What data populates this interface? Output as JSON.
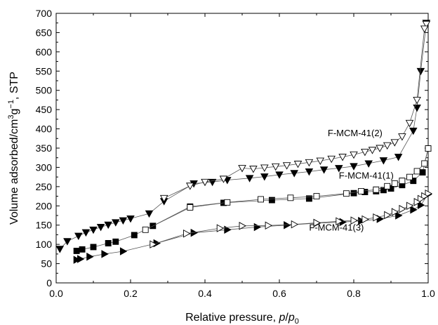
{
  "chart_data": {
    "type": "scatter",
    "title": "",
    "xlabel": "Relative pressure, p/p0",
    "ylabel": "Volume adsorbed/cm3g−1, STP",
    "xlim": [
      0.0,
      1.0
    ],
    "ylim": [
      0,
      700
    ],
    "x_ticks": [
      "0.0",
      "0.2",
      "0.4",
      "0.6",
      "0.8",
      "1.0"
    ],
    "y_ticks": [
      "0",
      "50",
      "100",
      "150",
      "200",
      "250",
      "300",
      "350",
      "400",
      "450",
      "500",
      "550",
      "600",
      "650",
      "700"
    ],
    "grid": false,
    "legend": "none",
    "annotations": [
      {
        "text": "F-MCM-41(2)",
        "x": 0.73,
        "y": 390
      },
      {
        "text": "F-MCM-41(1)",
        "x": 0.76,
        "y": 280
      },
      {
        "text": "F-MCM-41(3)",
        "x": 0.68,
        "y": 145
      }
    ],
    "series": [
      {
        "label": "F-MCM-41(2) adsorption",
        "marker": "triangle-down-filled",
        "x": [
          0.01,
          0.03,
          0.06,
          0.08,
          0.1,
          0.12,
          0.14,
          0.16,
          0.18,
          0.2,
          0.25,
          0.29,
          0.37,
          0.42,
          0.46,
          0.52,
          0.56,
          0.6,
          0.64,
          0.68,
          0.72,
          0.76,
          0.8,
          0.84,
          0.88,
          0.92,
          0.96,
          0.97,
          0.98,
          0.995
        ],
        "y": [
          88,
          108,
          122,
          131,
          138,
          145,
          151,
          157,
          162,
          167,
          180,
          212,
          258,
          262,
          267,
          272,
          276,
          281,
          285,
          289,
          294,
          298,
          303,
          310,
          318,
          327,
          395,
          455,
          550,
          675
        ]
      },
      {
        "label": "F-MCM-41(2) desorption",
        "marker": "triangle-down-open",
        "x": [
          0.995,
          0.99,
          0.97,
          0.95,
          0.93,
          0.91,
          0.89,
          0.87,
          0.85,
          0.83,
          0.8,
          0.77,
          0.74,
          0.71,
          0.68,
          0.65,
          0.62,
          0.59,
          0.56,
          0.53,
          0.5,
          0.45,
          0.4,
          0.36,
          0.29
        ],
        "y": [
          672,
          660,
          475,
          415,
          380,
          365,
          357,
          350,
          345,
          340,
          333,
          327,
          322,
          317,
          313,
          309,
          305,
          302,
          299,
          296,
          298,
          270,
          262,
          252,
          220
        ]
      },
      {
        "label": "F-MCM-41(1) adsorption",
        "marker": "square-filled",
        "x": [
          0.055,
          0.07,
          0.1,
          0.14,
          0.16,
          0.21,
          0.26,
          0.36,
          0.45,
          0.58,
          0.68,
          0.8,
          0.83,
          0.86,
          0.88,
          0.9,
          0.93,
          0.96,
          0.985,
          1.0
        ],
        "y": [
          83,
          87,
          93,
          103,
          107,
          124,
          148,
          198,
          208,
          215,
          219,
          233,
          236,
          238,
          241,
          245,
          254,
          265,
          287,
          349
        ]
      },
      {
        "label": "F-MCM-41(1) desorption",
        "marker": "square-open",
        "x": [
          1.0,
          0.99,
          0.97,
          0.95,
          0.93,
          0.91,
          0.89,
          0.86,
          0.82,
          0.78,
          0.7,
          0.63,
          0.55,
          0.46,
          0.36,
          0.24
        ],
        "y": [
          349,
          310,
          290,
          275,
          265,
          258,
          251,
          242,
          238,
          232,
          225,
          221,
          217,
          209,
          196,
          138
        ]
      },
      {
        "label": "F-MCM-41(3) adsorption",
        "marker": "triangle-right-filled",
        "x": [
          0.055,
          0.065,
          0.09,
          0.13,
          0.18,
          0.27,
          0.37,
          0.46,
          0.54,
          0.62,
          0.7,
          0.77,
          0.82,
          0.87,
          0.92,
          0.96,
          0.98,
          1.0
        ],
        "y": [
          60,
          62,
          68,
          75,
          82,
          103,
          130,
          138,
          145,
          150,
          155,
          158,
          161,
          166,
          175,
          190,
          202,
          230
        ]
      },
      {
        "label": "F-MCM-41(3) desorption",
        "marker": "triangle-right-open",
        "x": [
          1.0,
          0.99,
          0.98,
          0.97,
          0.95,
          0.93,
          0.91,
          0.89,
          0.86,
          0.83,
          0.8,
          0.76,
          0.7,
          0.64,
          0.57,
          0.5,
          0.44,
          0.35,
          0.26
        ],
        "y": [
          232,
          225,
          218,
          210,
          200,
          192,
          184,
          176,
          170,
          165,
          162,
          160,
          156,
          152,
          149,
          148,
          142,
          128,
          100
        ]
      }
    ]
  }
}
